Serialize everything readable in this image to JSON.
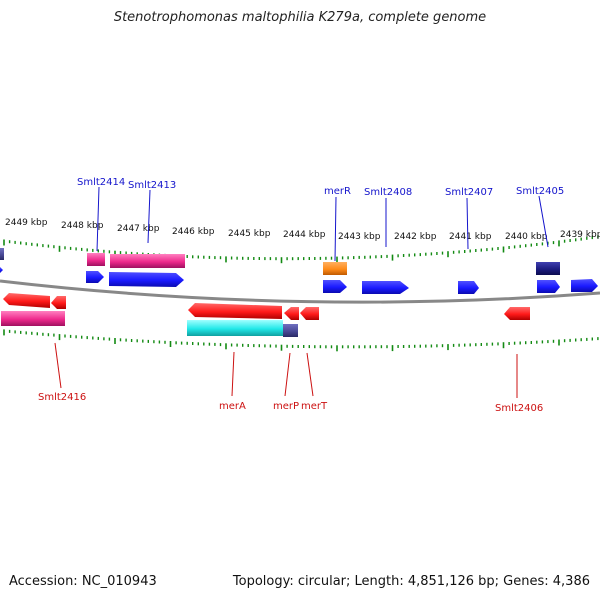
{
  "header": {
    "title": "Stenotrophomonas maltophilia K279a, complete genome"
  },
  "footer": {
    "accession": "Accession: NC_010943",
    "summary": "Topology: circular; Length: 4,851,126 bp; Genes: 4,386"
  },
  "scale": {
    "labels": [
      "2449 kbp",
      "2448 kbp",
      "2447 kbp",
      "2446 kbp",
      "2445 kbp",
      "2444 kbp",
      "2443 kbp",
      "2442 kbp",
      "2441 kbp",
      "2440 kbp",
      "2439 kbp"
    ]
  },
  "gene_labels": {
    "forward": [
      "Smlt2414",
      "Smlt2413",
      "merR",
      "Smlt2408",
      "Smlt2407",
      "Smlt2405"
    ],
    "reverse": [
      "Smlt2416",
      "merA",
      "merP",
      "merT",
      "Smlt2406"
    ]
  },
  "colors": {
    "forward_label": "#1515cc",
    "reverse_label": "#cc1111",
    "cds_blue": "#1a1aff",
    "cds_red": "#ff1a1a",
    "gene_pink": "#ee2a8c",
    "gene_cyan": "#22e8e8",
    "gene_orange": "#ff8c1a",
    "gene_navy": "#1c1c80",
    "gene_slate": "#4a4a96",
    "backbone": "#888888",
    "ticks": "#138a13"
  }
}
